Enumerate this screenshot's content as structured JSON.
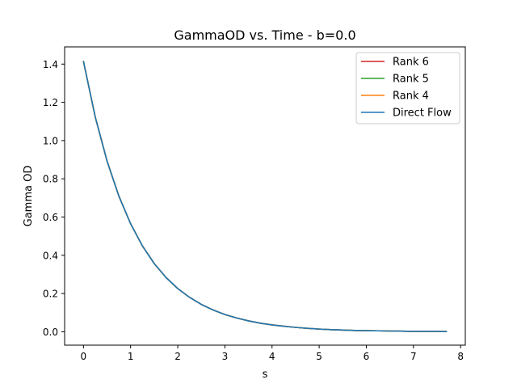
{
  "chart_data": {
    "type": "line",
    "title": "GammaOD vs. Time - b=0.0",
    "xlabel": "s",
    "ylabel": "Gamma OD",
    "xlim": [
      -0.4,
      8.1
    ],
    "ylim": [
      -0.07,
      1.49
    ],
    "xticks": [
      "0",
      "1",
      "2",
      "3",
      "4",
      "5",
      "6",
      "7",
      "8"
    ],
    "xtick_values": [
      0,
      1,
      2,
      3,
      4,
      5,
      6,
      7,
      8
    ],
    "yticks": [
      "0.0",
      "0.2",
      "0.4",
      "0.6",
      "0.8",
      "1.0",
      "1.2",
      "1.4"
    ],
    "ytick_values": [
      0.0,
      0.2,
      0.4,
      0.6,
      0.8,
      1.0,
      1.2,
      1.4
    ],
    "grid": false,
    "legend_position": "top-right",
    "x": [
      0.0,
      0.25,
      0.5,
      0.75,
      1.0,
      1.25,
      1.5,
      1.75,
      2.0,
      2.25,
      2.5,
      2.75,
      3.0,
      3.25,
      3.5,
      3.75,
      4.0,
      4.25,
      4.5,
      4.75,
      5.0,
      5.25,
      5.5,
      5.75,
      6.0,
      6.25,
      6.5,
      6.75,
      7.0,
      7.25,
      7.5,
      7.7
    ],
    "series": [
      {
        "name": "Rank 6",
        "color": "#d62728",
        "values": [
          1.414,
          1.123,
          0.893,
          0.71,
          0.565,
          0.449,
          0.357,
          0.284,
          0.226,
          0.18,
          0.143,
          0.114,
          0.09,
          0.072,
          0.057,
          0.045,
          0.036,
          0.029,
          0.023,
          0.018,
          0.014,
          0.011,
          0.009,
          0.007,
          0.006,
          0.005,
          0.004,
          0.003,
          0.002,
          0.002,
          0.002,
          0.001
        ]
      },
      {
        "name": "Rank 5",
        "color": "#2ca02c",
        "values": [
          1.414,
          1.123,
          0.893,
          0.71,
          0.565,
          0.449,
          0.357,
          0.284,
          0.226,
          0.18,
          0.143,
          0.114,
          0.09,
          0.072,
          0.057,
          0.045,
          0.036,
          0.029,
          0.023,
          0.018,
          0.014,
          0.011,
          0.009,
          0.007,
          0.006,
          0.005,
          0.004,
          0.003,
          0.002,
          0.002,
          0.002,
          0.001
        ]
      },
      {
        "name": "Rank 4",
        "color": "#ff7f0e",
        "values": [
          1.414,
          1.123,
          0.893,
          0.71,
          0.565,
          0.449,
          0.357,
          0.284,
          0.226,
          0.18,
          0.143,
          0.114,
          0.09,
          0.072,
          0.057,
          0.045,
          0.036,
          0.029,
          0.023,
          0.018,
          0.014,
          0.011,
          0.009,
          0.007,
          0.006,
          0.005,
          0.004,
          0.003,
          0.002,
          0.002,
          0.002,
          0.001
        ]
      },
      {
        "name": "Direct Flow",
        "color": "#1f77b4",
        "values": [
          1.414,
          1.123,
          0.893,
          0.71,
          0.565,
          0.449,
          0.357,
          0.284,
          0.226,
          0.18,
          0.143,
          0.114,
          0.09,
          0.072,
          0.057,
          0.045,
          0.036,
          0.029,
          0.023,
          0.018,
          0.014,
          0.011,
          0.009,
          0.007,
          0.006,
          0.005,
          0.004,
          0.003,
          0.002,
          0.002,
          0.002,
          0.001
        ]
      }
    ]
  }
}
